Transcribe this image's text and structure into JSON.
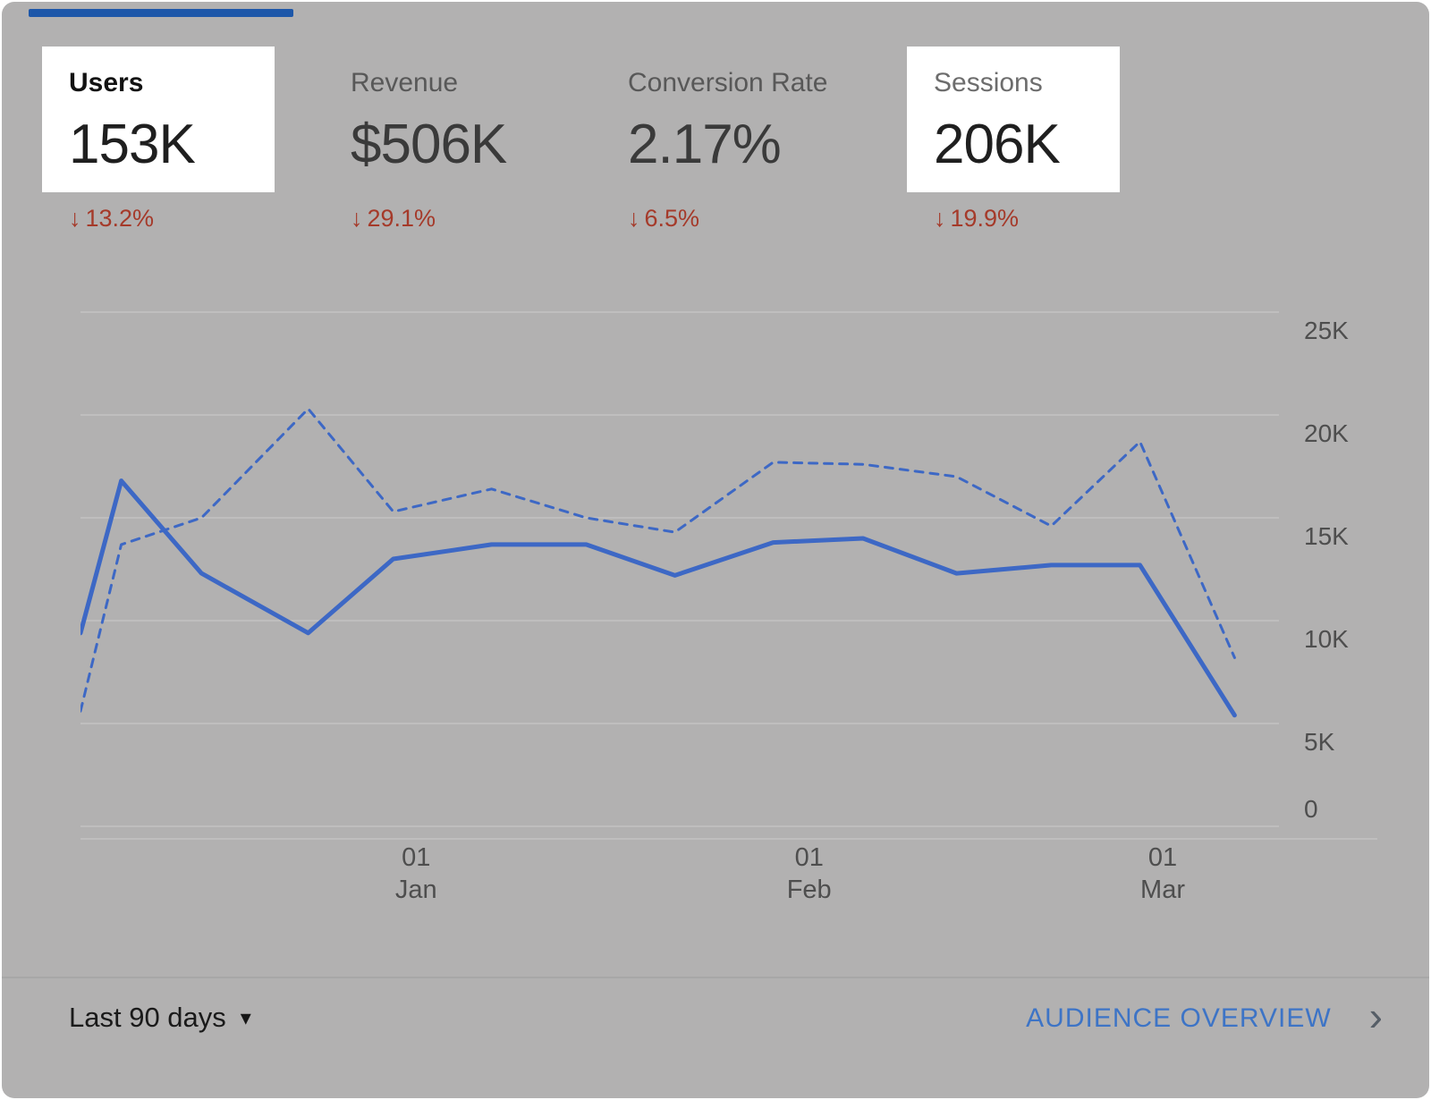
{
  "colors": {
    "background": "#b2b1b1",
    "highlight": "#ffffff",
    "tab_blue": "#1d57a9",
    "line_blue": "#3d68c5",
    "delta_red": "#a53a2a",
    "link_blue": "#3d74c6",
    "gridline": "#c3c3c3",
    "axis_text": "#4e4e4e"
  },
  "icons": {
    "down_arrow": "↓",
    "caret_down": "▾",
    "chevron_right": "›"
  },
  "metrics": [
    {
      "label": "Users",
      "value": "153K",
      "arrow": "↓",
      "delta": "13.2%"
    },
    {
      "label": "Revenue",
      "value": "$506K",
      "arrow": "↓",
      "delta": "29.1%"
    },
    {
      "label": "Conversion Rate",
      "value": "2.17%",
      "arrow": "↓",
      "delta": "6.5%"
    },
    {
      "label": "Sessions",
      "value": "206K",
      "arrow": "↓",
      "delta": "19.9%"
    }
  ],
  "footer": {
    "date_range": "Last 90 days",
    "link": "AUDIENCE OVERVIEW"
  },
  "chart_data": {
    "type": "line",
    "title": "",
    "unit": "K",
    "ylim": [
      0,
      25
    ],
    "yticks": [
      0,
      5,
      10,
      15,
      20,
      25
    ],
    "ytick_labels": [
      "0",
      "5K",
      "10K",
      "15K",
      "20K",
      "25K"
    ],
    "grid": true,
    "legend_position": "none",
    "x": [
      0,
      0.034,
      0.101,
      0.19,
      0.261,
      0.343,
      0.422,
      0.496,
      0.578,
      0.653,
      0.731,
      0.81,
      0.884,
      0.963
    ],
    "x_ticks": [
      {
        "pos": 0.28,
        "line1": "01",
        "line2": "Jan"
      },
      {
        "pos": 0.608,
        "line1": "01",
        "line2": "Feb"
      },
      {
        "pos": 0.903,
        "line1": "01",
        "line2": "Mar"
      }
    ],
    "series": [
      {
        "name": "Users",
        "style": "solid",
        "values": [
          9.4,
          16.8,
          12.3,
          9.4,
          13.0,
          13.7,
          13.7,
          12.2,
          13.8,
          14.0,
          12.3,
          12.7,
          12.7,
          5.4
        ]
      },
      {
        "name": "Sessions",
        "style": "dashed",
        "values": [
          5.6,
          13.7,
          15.0,
          20.3,
          15.3,
          16.4,
          15.0,
          14.3,
          17.7,
          17.6,
          17.0,
          14.6,
          18.7,
          8.2
        ]
      }
    ]
  }
}
